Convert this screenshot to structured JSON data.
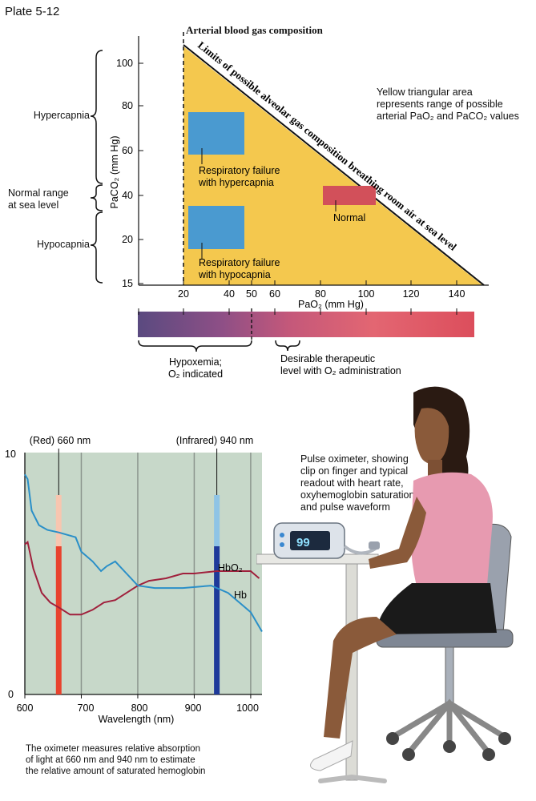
{
  "plate": "Plate 5-12",
  "top_chart": {
    "title": "Arterial blood gas composition",
    "diagonal_label": "Limits of possible alveolar gas composition breathing room air at sea level",
    "note": [
      "Yellow triangular area",
      "represents range of possible",
      "arterial PaO₂ and PaCO₂ values"
    ],
    "y_axis_label": "PaCO₂ (mm Hg)",
    "x_axis_label": "PaO₂ (mm Hg)",
    "y_ticks": [
      "100",
      "80",
      "60",
      "40",
      "20",
      "15"
    ],
    "x_ticks": [
      "20",
      "40",
      "50",
      "60",
      "80",
      "100",
      "120",
      "140"
    ],
    "regions": [
      {
        "label": [
          "Respiratory failure",
          "with hypercapnia"
        ]
      },
      {
        "label": [
          "Normal"
        ]
      },
      {
        "label": [
          "Respiratory failure",
          "with hypocapnia"
        ]
      }
    ],
    "side_labels": {
      "hypercapnia": "Hypercapnia",
      "normal": [
        "Normal range",
        "at sea level"
      ],
      "hypocapnia": "Hypocapnia"
    },
    "gradient_labels": {
      "hypoxemia": [
        "Hypoxemia;",
        "O₂ indicated"
      ],
      "therapeutic": [
        "Desirable therapeutic",
        "level with O₂ administration"
      ]
    },
    "colors": {
      "triangle": "#f4c84e",
      "blue": "#4a9ad0",
      "red": "#d2505a"
    }
  },
  "spectrum_chart": {
    "type": "line",
    "y_ticks": [
      "10",
      "0"
    ],
    "x_ticks": [
      "600",
      "700",
      "800",
      "900",
      "1000"
    ],
    "x_label": "Wavelength (nm)",
    "xlim": [
      600,
      1020
    ],
    "ylim": [
      0,
      10
    ],
    "markers": [
      {
        "label": "(Red) 660 nm",
        "x": 660,
        "color": "#e8432e"
      },
      {
        "label": "(Infrared) 940 nm",
        "x": 940,
        "color": "#1e3a9a"
      }
    ],
    "series": [
      {
        "name": "HbO₂",
        "color": "#a0203c",
        "points": [
          [
            600,
            6.2
          ],
          [
            605,
            6.3
          ],
          [
            615,
            5.2
          ],
          [
            630,
            4.2
          ],
          [
            645,
            3.8
          ],
          [
            660,
            3.6
          ],
          [
            680,
            3.3
          ],
          [
            700,
            3.3
          ],
          [
            720,
            3.5
          ],
          [
            740,
            3.8
          ],
          [
            760,
            3.9
          ],
          [
            780,
            4.2
          ],
          [
            800,
            4.5
          ],
          [
            820,
            4.7
          ],
          [
            850,
            4.8
          ],
          [
            880,
            5.0
          ],
          [
            900,
            5.0
          ],
          [
            940,
            5.1
          ],
          [
            980,
            5.1
          ],
          [
            1000,
            5.1
          ],
          [
            1015,
            4.8
          ]
        ]
      },
      {
        "name": "Hb",
        "color": "#2a8fc8",
        "points": [
          [
            600,
            9.1
          ],
          [
            605,
            8.9
          ],
          [
            612,
            7.6
          ],
          [
            625,
            7.0
          ],
          [
            640,
            6.8
          ],
          [
            660,
            6.7
          ],
          [
            690,
            6.5
          ],
          [
            700,
            5.9
          ],
          [
            720,
            5.5
          ],
          [
            735,
            5.1
          ],
          [
            745,
            5.3
          ],
          [
            760,
            5.5
          ],
          [
            780,
            5.0
          ],
          [
            800,
            4.5
          ],
          [
            830,
            4.4
          ],
          [
            880,
            4.4
          ],
          [
            930,
            4.5
          ],
          [
            960,
            4.2
          ],
          [
            980,
            3.8
          ],
          [
            1000,
            3.4
          ],
          [
            1020,
            2.6
          ]
        ]
      }
    ]
  },
  "spectrum_caption": [
    "The oximeter measures relative absorption",
    "of light at 660 nm and 940 nm to estimate",
    "the relative amount of saturated hemoglobin"
  ],
  "oximeter_caption": [
    "Pulse oximeter, showing",
    "clip on finger and typical",
    "readout with heart rate,",
    "oxyhemoglobin saturation,",
    "and pulse waveform"
  ],
  "oximeter_readout": "99"
}
